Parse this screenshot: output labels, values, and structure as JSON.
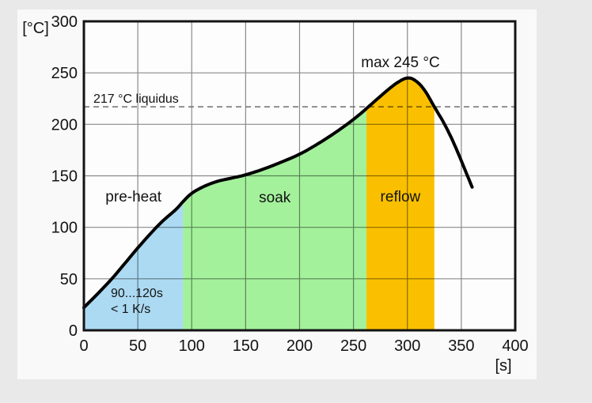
{
  "page": {
    "background_color": "#e9e9e9",
    "card_color": "#f9f9f9",
    "plot_color": "#fdfdfd"
  },
  "colors": {
    "grid": "#8a8a8a",
    "dashed_line": "#787878",
    "frame": "#141414",
    "curve": "#000000",
    "text": "#131313"
  },
  "chart_data": {
    "type": "line",
    "title": "",
    "ylabel": "[°C]",
    "xlabel": "[s]",
    "xlim": [
      0,
      400
    ],
    "ylim": [
      0,
      300
    ],
    "x_ticks": [
      0,
      50,
      100,
      150,
      200,
      250,
      300,
      350,
      400
    ],
    "y_ticks": [
      0,
      50,
      100,
      150,
      200,
      250,
      300
    ],
    "grid": true,
    "liquidus_line": {
      "value": 217,
      "label": "217 °C liquidus",
      "style": "dashed"
    },
    "peak_annotation": {
      "label": "max 245 °C",
      "x": 300,
      "y": 245
    },
    "ramp_annotation": {
      "lines": [
        "90...120s",
        "< 1 K/s"
      ]
    },
    "regions": [
      {
        "label": "pre-heat",
        "x_start": 0,
        "x_end": 92,
        "color": "#aedcf5"
      },
      {
        "label": "soak",
        "x_start": 92,
        "x_end": 262,
        "color": "#a5f39d"
      },
      {
        "label": "reflow",
        "x_start": 262,
        "x_end": 325,
        "color": "#fcc200"
      }
    ],
    "series": [
      {
        "name": "temperature-profile",
        "color": "#000000",
        "points": [
          [
            0,
            22
          ],
          [
            25,
            49
          ],
          [
            50,
            80
          ],
          [
            70,
            103
          ],
          [
            85,
            117
          ],
          [
            92,
            125
          ],
          [
            100,
            133
          ],
          [
            112,
            140
          ],
          [
            125,
            145
          ],
          [
            138,
            148
          ],
          [
            150,
            151
          ],
          [
            165,
            156
          ],
          [
            180,
            162
          ],
          [
            200,
            171
          ],
          [
            220,
            183
          ],
          [
            240,
            197
          ],
          [
            255,
            209
          ],
          [
            266,
            219
          ],
          [
            278,
            230
          ],
          [
            290,
            240
          ],
          [
            300,
            245
          ],
          [
            308,
            242
          ],
          [
            316,
            233
          ],
          [
            325,
            217
          ],
          [
            335,
            199
          ],
          [
            345,
            177
          ],
          [
            360,
            139
          ]
        ]
      }
    ]
  }
}
